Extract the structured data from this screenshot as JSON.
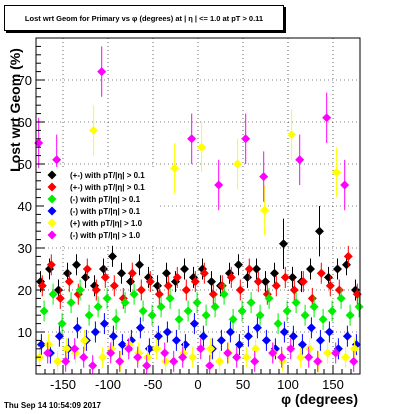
{
  "header": {
    "title": "Lost wrt Geom for Primary vs φ (degrees) at | η | <= 1.0 at pT > 0.11"
  },
  "footer": {
    "timestamp": "Thu Sep 14 10:54:09 2017"
  },
  "chart_data": {
    "type": "scatter",
    "title": "Lost wrt Geom for Primary vs φ (degrees) at | η | <= 1.0 at pT > 0.11",
    "xlabel": "φ (degrees)",
    "ylabel": "Lost wrt Geom (%)",
    "xlim": [
      -180,
      180
    ],
    "ylim": [
      0,
      80
    ],
    "xticks": [
      -150,
      -100,
      -50,
      0,
      50,
      100,
      150
    ],
    "yticks": [
      10,
      20,
      30,
      40,
      50,
      60,
      70
    ],
    "grid": true,
    "legend_position": "left",
    "series": [
      {
        "name": "(+-) with pT/|η| > 0.1",
        "color": "#000000",
        "marker": "diamond",
        "x": [
          -175,
          -165,
          -155,
          -145,
          -135,
          -125,
          -115,
          -105,
          -95,
          -85,
          -75,
          -65,
          -55,
          -45,
          -35,
          -25,
          -15,
          -5,
          5,
          15,
          25,
          35,
          45,
          55,
          65,
          75,
          85,
          95,
          105,
          115,
          125,
          135,
          145,
          155,
          165,
          175
        ],
        "y": [
          22,
          25,
          20,
          24,
          26,
          23,
          21,
          25,
          28,
          24,
          22,
          26,
          23,
          21,
          24,
          22,
          25,
          23,
          25,
          22,
          21,
          24,
          26,
          23,
          25,
          22,
          24,
          31,
          23,
          22,
          25,
          34,
          23,
          25,
          26,
          20
        ]
      },
      {
        "name": "(+-) with pT/|η| > 0.1",
        "color": "#ff0000",
        "marker": "diamond",
        "x": [
          -173,
          -163,
          -153,
          -143,
          -133,
          -123,
          -113,
          -103,
          -93,
          -83,
          -73,
          -63,
          -53,
          -43,
          -33,
          -23,
          -13,
          -3,
          7,
          17,
          27,
          37,
          47,
          57,
          67,
          77,
          87,
          97,
          107,
          117,
          127,
          137,
          147,
          157,
          167,
          177
        ],
        "y": [
          21,
          26,
          18,
          22,
          19,
          25,
          20,
          23,
          21,
          18,
          24,
          20,
          22,
          19,
          21,
          23,
          20,
          22,
          24,
          19,
          21,
          23,
          20,
          25,
          22,
          19,
          21,
          23,
          20,
          22,
          18,
          24,
          21,
          20,
          28,
          19
        ]
      },
      {
        "name": "(-) with pT/|η| > 0.1",
        "color": "#00ee00",
        "marker": "diamond",
        "x": [
          -171,
          -161,
          -151,
          -141,
          -131,
          -121,
          -111,
          -101,
          -91,
          -81,
          -71,
          -61,
          -51,
          -41,
          -31,
          -21,
          -11,
          -1,
          9,
          19,
          29,
          39,
          49,
          59,
          69,
          79,
          89,
          99,
          109,
          119,
          129,
          139,
          149,
          159,
          169,
          179
        ],
        "y": [
          15,
          19,
          12,
          17,
          20,
          14,
          16,
          18,
          13,
          17,
          19,
          15,
          14,
          16,
          18,
          13,
          15,
          17,
          14,
          16,
          19,
          13,
          15,
          17,
          14,
          18,
          12,
          15,
          17,
          14,
          16,
          13,
          15,
          18,
          14,
          16
        ]
      },
      {
        "name": "(-) with pT/|η| > 0.1",
        "color": "#0000ff",
        "marker": "diamond",
        "x": [
          -174,
          -164,
          -154,
          -144,
          -134,
          -124,
          -114,
          -104,
          -94,
          -84,
          -74,
          -64,
          -54,
          -44,
          -34,
          -24,
          -14,
          -4,
          6,
          16,
          26,
          36,
          46,
          56,
          66,
          76,
          86,
          96,
          106,
          116,
          126,
          136,
          146,
          156,
          166,
          176
        ],
        "y": [
          7,
          5,
          9,
          6,
          11,
          8,
          10,
          12,
          9,
          7,
          8,
          11,
          6,
          9,
          10,
          8,
          7,
          12,
          9,
          6,
          8,
          10,
          7,
          9,
          11,
          8,
          6,
          10,
          9,
          7,
          11,
          8,
          10,
          6,
          9,
          7
        ]
      },
      {
        "name": "(+) with pT/|η| > 1.0",
        "color": "#ffff00",
        "marker": "diamond",
        "x": [
          -176,
          -166,
          -156,
          -146,
          -136,
          -126,
          -116,
          -106,
          -96,
          -86,
          -76,
          -66,
          -56,
          -46,
          -36,
          -26,
          -16,
          -6,
          4,
          14,
          24,
          34,
          44,
          54,
          64,
          74,
          84,
          94,
          104,
          114,
          124,
          134,
          144,
          154,
          164,
          174
        ],
        "y": [
          4,
          7,
          3,
          6,
          5,
          8,
          58,
          4,
          6,
          3,
          7,
          5,
          4,
          6,
          3,
          49,
          5,
          4,
          54,
          6,
          3,
          5,
          50,
          4,
          6,
          39,
          5,
          3,
          57,
          4,
          6,
          3,
          5,
          48,
          4,
          6
        ]
      },
      {
        "name": "(-) with pT/|η| > 1.0",
        "color": "#ff00ff",
        "marker": "diamond",
        "x": [
          -177,
          -167,
          -157,
          -147,
          -137,
          -127,
          -117,
          -107,
          -97,
          -87,
          -77,
          -67,
          -57,
          -47,
          -37,
          -27,
          -17,
          -7,
          3,
          13,
          23,
          33,
          43,
          53,
          63,
          73,
          83,
          93,
          103,
          113,
          123,
          133,
          143,
          153,
          163,
          173
        ],
        "y": [
          55,
          5,
          51,
          3,
          6,
          4,
          2,
          72,
          5,
          3,
          6,
          4,
          2,
          41,
          5,
          3,
          4,
          56,
          6,
          2,
          45,
          5,
          4,
          56,
          3,
          47,
          5,
          4,
          6,
          51,
          4,
          3,
          61,
          5,
          45,
          3
        ]
      }
    ]
  }
}
